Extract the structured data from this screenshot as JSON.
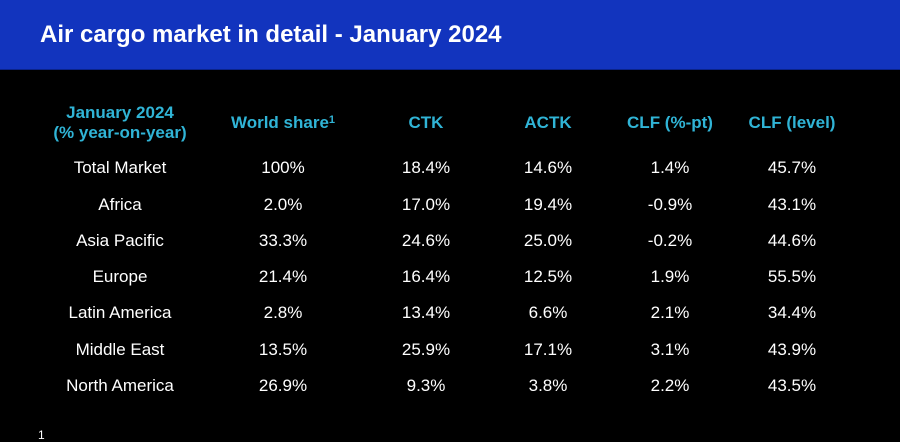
{
  "header": {
    "title": "Air cargo market in detail - January 2024",
    "background_color": "#1234be"
  },
  "table": {
    "header_color": "#30b4d6",
    "text_color": "#ffffff",
    "columns": [
      {
        "label": "January 2024",
        "label2": "(% year-on-year)",
        "sup": ""
      },
      {
        "label": "World share",
        "label2": "",
        "sup": "1"
      },
      {
        "label": "CTK",
        "label2": "",
        "sup": ""
      },
      {
        "label": "ACTK",
        "label2": "",
        "sup": ""
      },
      {
        "label": "CLF (%-pt)",
        "label2": "",
        "sup": ""
      },
      {
        "label": "CLF (level)",
        "label2": "",
        "sup": ""
      }
    ],
    "rows": [
      [
        "Total Market",
        "100%",
        "18.4%",
        "14.6%",
        "1.4%",
        "45.7%"
      ],
      [
        "Africa",
        "2.0%",
        "17.0%",
        "19.4%",
        "-0.9%",
        "43.1%"
      ],
      [
        "Asia Pacific",
        "33.3%",
        "24.6%",
        "25.0%",
        "-0.2%",
        "44.6%"
      ],
      [
        "Europe",
        "21.4%",
        "16.4%",
        "12.5%",
        "1.9%",
        "55.5%"
      ],
      [
        "Latin America",
        "2.8%",
        "13.4%",
        "6.6%",
        "2.1%",
        "34.4%"
      ],
      [
        "Middle East",
        "13.5%",
        "25.9%",
        "17.1%",
        "3.1%",
        "43.9%"
      ],
      [
        "North America",
        "26.9%",
        "9.3%",
        "3.8%",
        "2.2%",
        "43.5%"
      ]
    ]
  },
  "footnote": {
    "text": "1"
  }
}
